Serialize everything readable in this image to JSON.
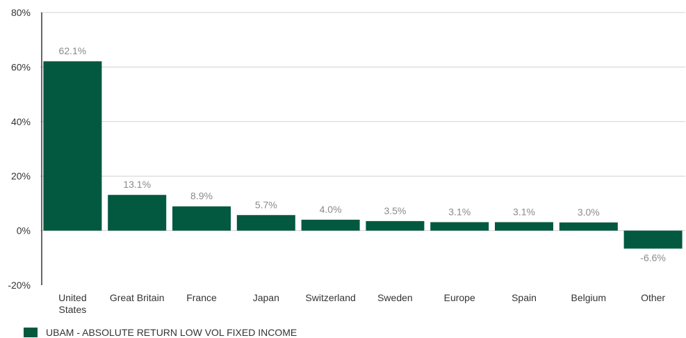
{
  "chart_data": {
    "type": "bar",
    "categories": [
      "United States",
      "Great Britain",
      "France",
      "Japan",
      "Switzerland",
      "Sweden",
      "Europe",
      "Spain",
      "Belgium",
      "Other"
    ],
    "category_lines": [
      [
        "United",
        "States"
      ],
      [
        "Great Britain"
      ],
      [
        "France"
      ],
      [
        "Japan"
      ],
      [
        "Switzerland"
      ],
      [
        "Sweden"
      ],
      [
        "Europe"
      ],
      [
        "Spain"
      ],
      [
        "Belgium"
      ],
      [
        "Other"
      ]
    ],
    "series": [
      {
        "name": "UBAM - ABSOLUTE RETURN LOW VOL FIXED INCOME",
        "values": [
          62.1,
          13.1,
          8.9,
          5.7,
          4.0,
          3.5,
          3.1,
          3.1,
          3.0,
          -6.6
        ]
      }
    ],
    "data_labels": [
      "62.1%",
      "13.1%",
      "8.9%",
      "5.7%",
      "4.0%",
      "3.5%",
      "3.1%",
      "3.1%",
      "3.0%",
      "-6.6%"
    ],
    "ylim": [
      -20,
      80
    ],
    "yticks": [
      -20,
      0,
      20,
      40,
      60,
      80
    ],
    "ytick_labels": [
      "-20%",
      "0%",
      "20%",
      "40%",
      "60%",
      "80%"
    ],
    "grid": true,
    "legend": "bottom-left",
    "colors": {
      "bar": "#02593f",
      "grid": "#d0d0d0",
      "axis": "#333333"
    }
  },
  "legend": {
    "label": "UBAM - ABSOLUTE RETURN LOW VOL FIXED INCOME"
  }
}
